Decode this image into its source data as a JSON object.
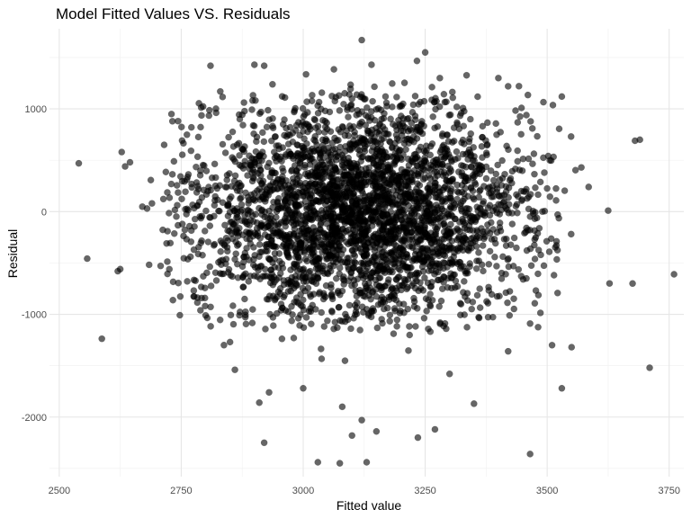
{
  "chart_data": {
    "type": "scatter",
    "title": "Model Fitted Values VS. Residuals",
    "xlabel": "Fitted value",
    "ylabel": "Residual",
    "xlim": [
      2480,
      3780
    ],
    "ylim": [
      -2580,
      1780
    ],
    "x_ticks": [
      2500,
      2750,
      3000,
      3250,
      3500,
      3750
    ],
    "x_tick_labels": [
      "2500",
      "2750",
      "3000",
      "3250",
      "3500",
      "3750"
    ],
    "y_ticks": [
      -2000,
      -1000,
      0,
      1000
    ],
    "y_tick_labels": [
      "-2000",
      "-1000",
      "0",
      "1000"
    ],
    "grid": true,
    "legend": "none",
    "point_color": "#000000",
    "point_opacity": 0.6,
    "cluster": {
      "center_x": 3120,
      "center_y": 0,
      "sd_x": 170,
      "sd_y": 520,
      "approx_count": 3400
    },
    "points": [
      {
        "x": 2540,
        "y": 470
      },
      {
        "x": 2620,
        "y": -580
      },
      {
        "x": 2625,
        "y": -560
      },
      {
        "x": 2628,
        "y": 580
      },
      {
        "x": 2635,
        "y": 440
      },
      {
        "x": 2645,
        "y": 480
      },
      {
        "x": 2680,
        "y": 30
      },
      {
        "x": 2690,
        "y": 80
      },
      {
        "x": 2715,
        "y": 650
      },
      {
        "x": 2720,
        "y": -310
      },
      {
        "x": 2730,
        "y": 950
      },
      {
        "x": 2732,
        "y": 880
      },
      {
        "x": 2810,
        "y": 1420
      },
      {
        "x": 2830,
        "y": 1170
      },
      {
        "x": 2870,
        "y": 900
      },
      {
        "x": 2900,
        "y": 1430
      },
      {
        "x": 2920,
        "y": 1420
      },
      {
        "x": 3120,
        "y": 1670
      },
      {
        "x": 3140,
        "y": 1430
      },
      {
        "x": 3250,
        "y": 1550
      },
      {
        "x": 3280,
        "y": 1300
      },
      {
        "x": 3400,
        "y": 1300
      },
      {
        "x": 3420,
        "y": 1220
      },
      {
        "x": 3530,
        "y": 1120
      },
      {
        "x": 3570,
        "y": 430
      },
      {
        "x": 3585,
        "y": 240
      },
      {
        "x": 3625,
        "y": 10
      },
      {
        "x": 3680,
        "y": 690
      },
      {
        "x": 3690,
        "y": 700
      },
      {
        "x": 3760,
        "y": -610
      },
      {
        "x": 3675,
        "y": -700
      },
      {
        "x": 3710,
        "y": -1520
      },
      {
        "x": 3530,
        "y": -1720
      },
      {
        "x": 3550,
        "y": -1320
      },
      {
        "x": 3510,
        "y": -1300
      },
      {
        "x": 3465,
        "y": -2360
      },
      {
        "x": 3465,
        "y": -1090
      },
      {
        "x": 2800,
        "y": -1010
      },
      {
        "x": 2850,
        "y": -1270
      },
      {
        "x": 2910,
        "y": -1860
      },
      {
        "x": 2920,
        "y": -2250
      },
      {
        "x": 3030,
        "y": -2440
      },
      {
        "x": 3075,
        "y": -2450
      },
      {
        "x": 3130,
        "y": -2440
      },
      {
        "x": 3235,
        "y": -2200
      },
      {
        "x": 3270,
        "y": -2120
      },
      {
        "x": 3150,
        "y": -2140
      },
      {
        "x": 3120,
        "y": -2030
      },
      {
        "x": 3080,
        "y": -1900
      },
      {
        "x": 3100,
        "y": -2180
      },
      {
        "x": 3000,
        "y": -1720
      },
      {
        "x": 3350,
        "y": -1870
      },
      {
        "x": 2930,
        "y": -1760
      },
      {
        "x": 3300,
        "y": -1580
      },
      {
        "x": 3420,
        "y": -1360
      },
      {
        "x": 2860,
        "y": -1540
      }
    ]
  }
}
